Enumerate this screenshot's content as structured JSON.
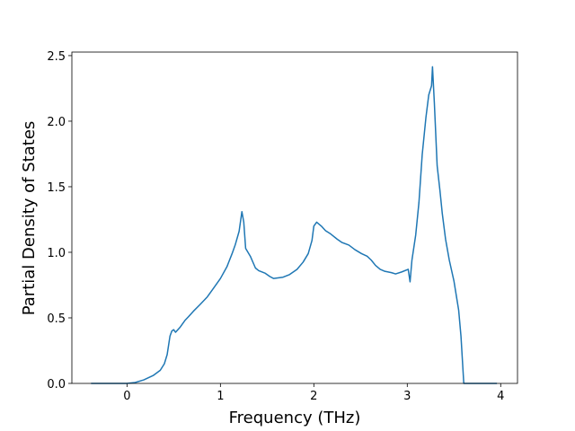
{
  "chart_data": {
    "type": "line",
    "xlabel": "Frequency (THz)",
    "ylabel": "Partial Density of States",
    "x": [
      -0.385,
      0,
      0.087,
      0.18,
      0.28,
      0.356,
      0.4,
      0.43,
      0.46,
      0.48,
      0.5,
      0.52,
      0.57,
      0.62,
      0.66,
      0.71,
      0.78,
      0.86,
      0.93,
      1.0,
      1.07,
      1.125,
      1.16,
      1.2,
      1.23,
      1.25,
      1.27,
      1.32,
      1.375,
      1.41,
      1.48,
      1.53,
      1.57,
      1.67,
      1.74,
      1.82,
      1.885,
      1.94,
      1.98,
      2.0,
      2.03,
      2.08,
      2.125,
      2.18,
      2.25,
      2.3,
      2.375,
      2.44,
      2.51,
      2.57,
      2.615,
      2.66,
      2.71,
      2.76,
      2.83,
      2.875,
      2.94,
      3.01,
      3.03,
      3.05,
      3.09,
      3.125,
      3.16,
      3.2,
      3.23,
      3.26,
      3.27,
      3.29,
      3.32,
      3.35,
      3.375,
      3.41,
      3.45,
      3.5,
      3.55,
      3.575,
      3.605,
      3.96
    ],
    "series": [
      {
        "name": "PDOS",
        "color": "#1f77b4",
        "values": [
          0,
          0,
          0.007,
          0.027,
          0.06,
          0.1,
          0.15,
          0.22,
          0.36,
          0.4,
          0.41,
          0.39,
          0.43,
          0.48,
          0.51,
          0.55,
          0.6,
          0.66,
          0.73,
          0.8,
          0.89,
          0.99,
          1.06,
          1.16,
          1.31,
          1.23,
          1.03,
          0.97,
          0.88,
          0.86,
          0.84,
          0.815,
          0.8,
          0.81,
          0.83,
          0.87,
          0.925,
          0.99,
          1.09,
          1.2,
          1.23,
          1.2,
          1.165,
          1.14,
          1.1,
          1.075,
          1.055,
          1.02,
          0.99,
          0.97,
          0.94,
          0.9,
          0.87,
          0.855,
          0.845,
          0.835,
          0.85,
          0.87,
          0.775,
          0.94,
          1.13,
          1.38,
          1.745,
          2.03,
          2.2,
          2.27,
          2.415,
          2.14,
          1.66,
          1.47,
          1.295,
          1.1,
          0.94,
          0.78,
          0.56,
          0.36,
          0,
          0
        ]
      }
    ],
    "xlim": [
      -0.59,
      4.18
    ],
    "xticks": [
      0,
      1,
      2,
      3,
      4
    ],
    "ylim": [
      0,
      2.527
    ],
    "yticks": [
      {
        "value": 0,
        "label": "0.0"
      },
      {
        "value": 0.5,
        "label": "0.5"
      },
      {
        "value": 1,
        "label": "1.0"
      },
      {
        "value": 1.5,
        "label": "1.5"
      },
      {
        "value": 2,
        "label": "2.0"
      },
      {
        "value": 2.5,
        "label": "2.5"
      }
    ],
    "grid": false
  }
}
